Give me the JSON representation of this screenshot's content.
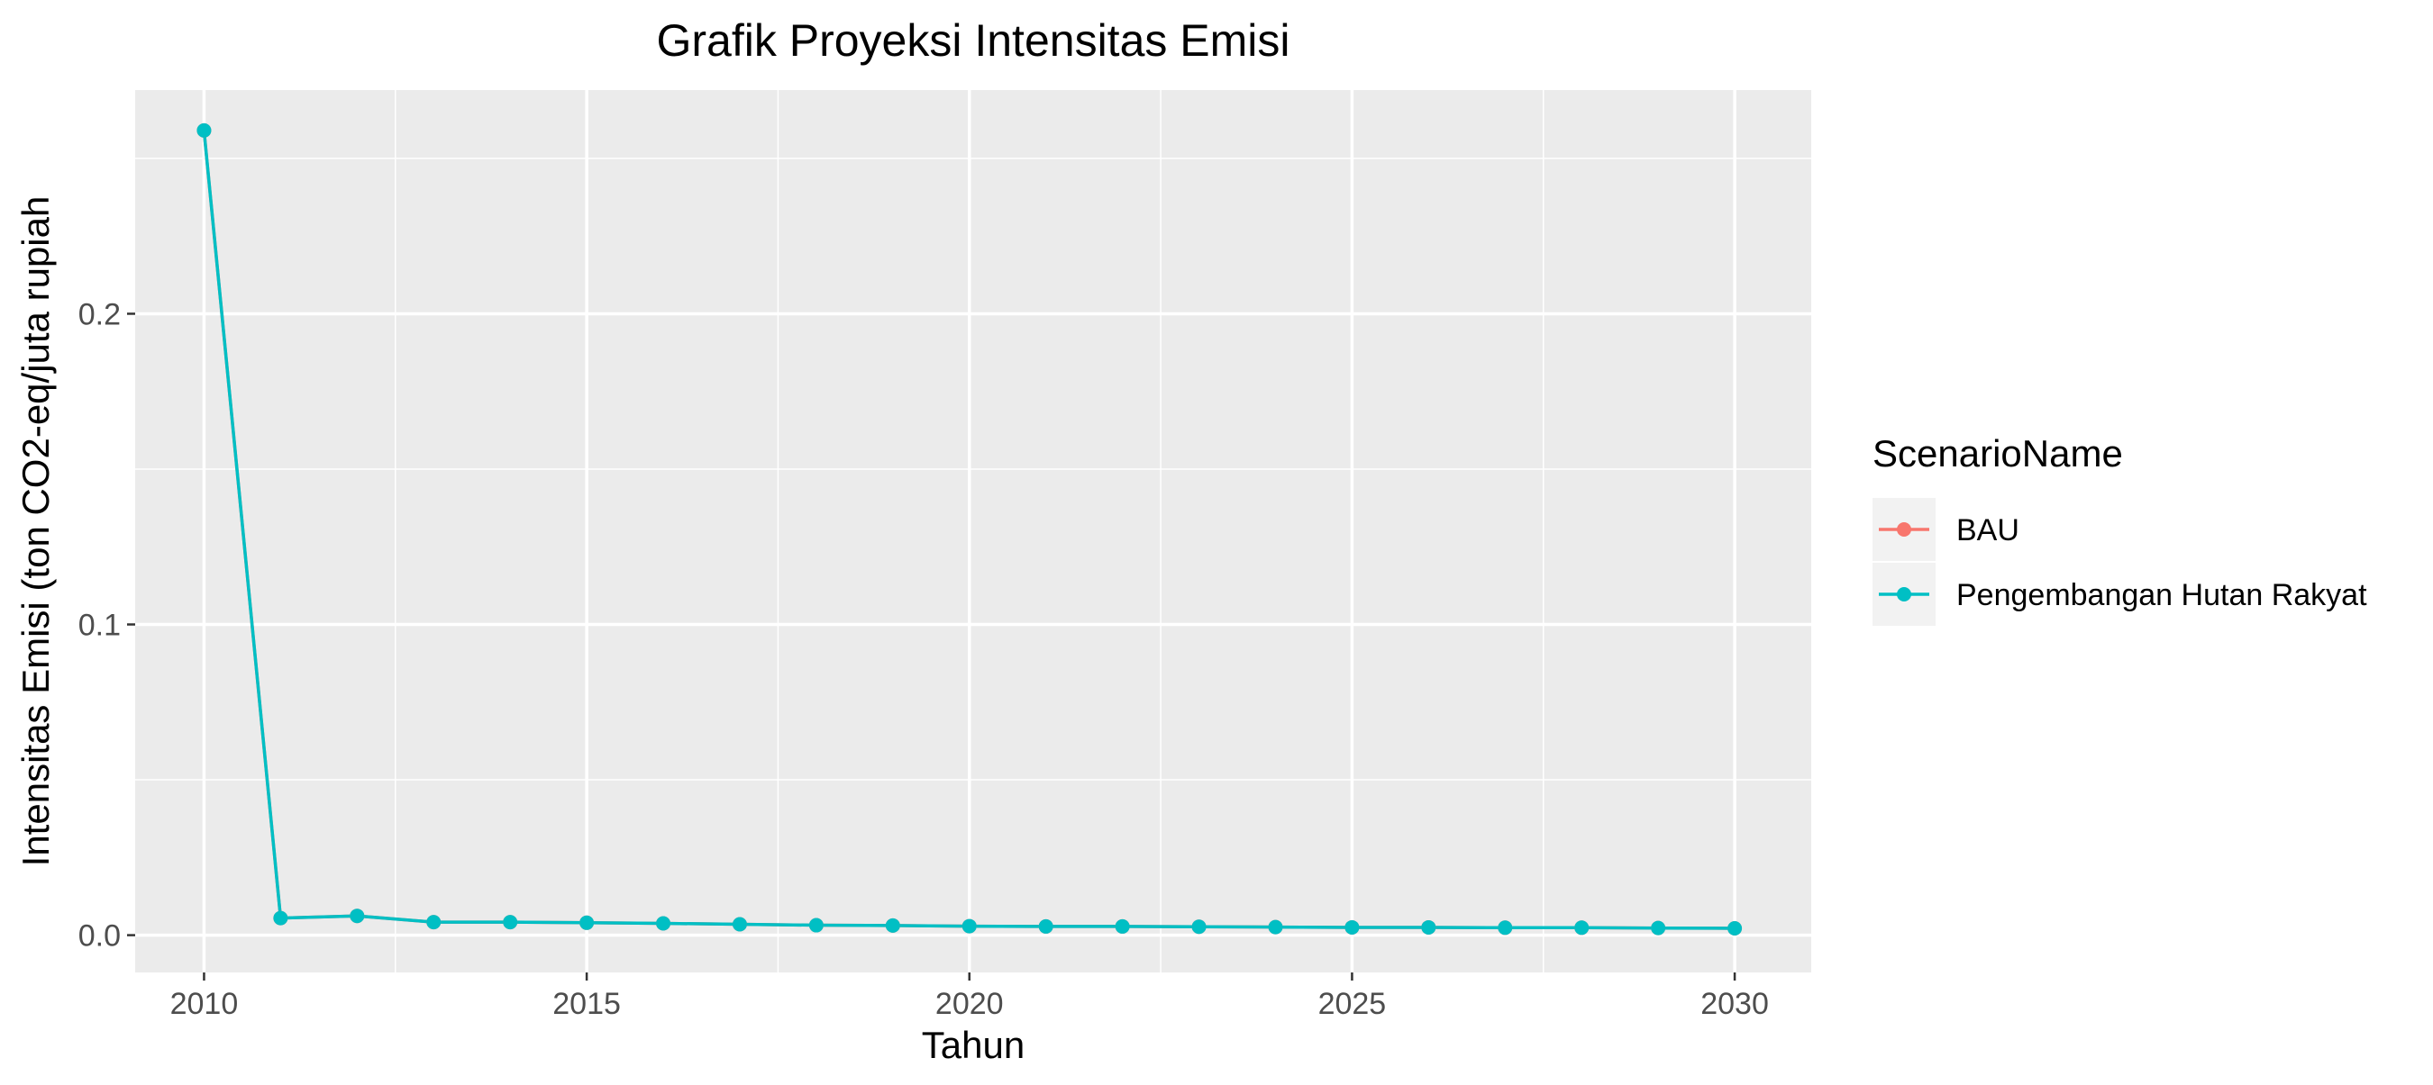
{
  "chart_data": {
    "type": "line",
    "title": "Grafik Proyeksi Intensitas Emisi",
    "xlabel": "Tahun",
    "ylabel": "Intensitas Emisi (ton CO2-eq/juta rupiah",
    "xlim": [
      2009.1,
      2031.0
    ],
    "ylim": [
      -0.012,
      0.272
    ],
    "x_ticks": [
      2010,
      2015,
      2020,
      2025,
      2030
    ],
    "x_tick_labels": [
      "2010",
      "2015",
      "2020",
      "2025",
      "2030"
    ],
    "y_ticks": [
      0.0,
      0.1,
      0.2
    ],
    "y_tick_labels": [
      "0.0",
      "0.1",
      "0.2"
    ],
    "grid": true,
    "legend": {
      "title": "ScenarioName",
      "position": "right"
    },
    "x": [
      2010,
      2011,
      2012,
      2013,
      2014,
      2015,
      2016,
      2017,
      2018,
      2019,
      2020,
      2021,
      2022,
      2023,
      2024,
      2025,
      2026,
      2027,
      2028,
      2029,
      2030
    ],
    "series": [
      {
        "name": "BAU",
        "color": "#F8766D",
        "values": [
          0.259,
          0.0055,
          0.0062,
          0.0042,
          0.0042,
          0.004,
          0.0038,
          0.0035,
          0.0032,
          0.0031,
          0.0029,
          0.0028,
          0.0028,
          0.0027,
          0.0026,
          0.0025,
          0.0025,
          0.0024,
          0.0024,
          0.0023,
          0.0022
        ]
      },
      {
        "name": "Pengembangan Hutan Rakyat",
        "color": "#00BFC4",
        "values": [
          0.259,
          0.0055,
          0.0062,
          0.0042,
          0.0042,
          0.004,
          0.0038,
          0.0035,
          0.0032,
          0.0031,
          0.0029,
          0.0028,
          0.0028,
          0.0027,
          0.0026,
          0.0025,
          0.0025,
          0.0024,
          0.0024,
          0.0023,
          0.0022
        ]
      }
    ]
  }
}
